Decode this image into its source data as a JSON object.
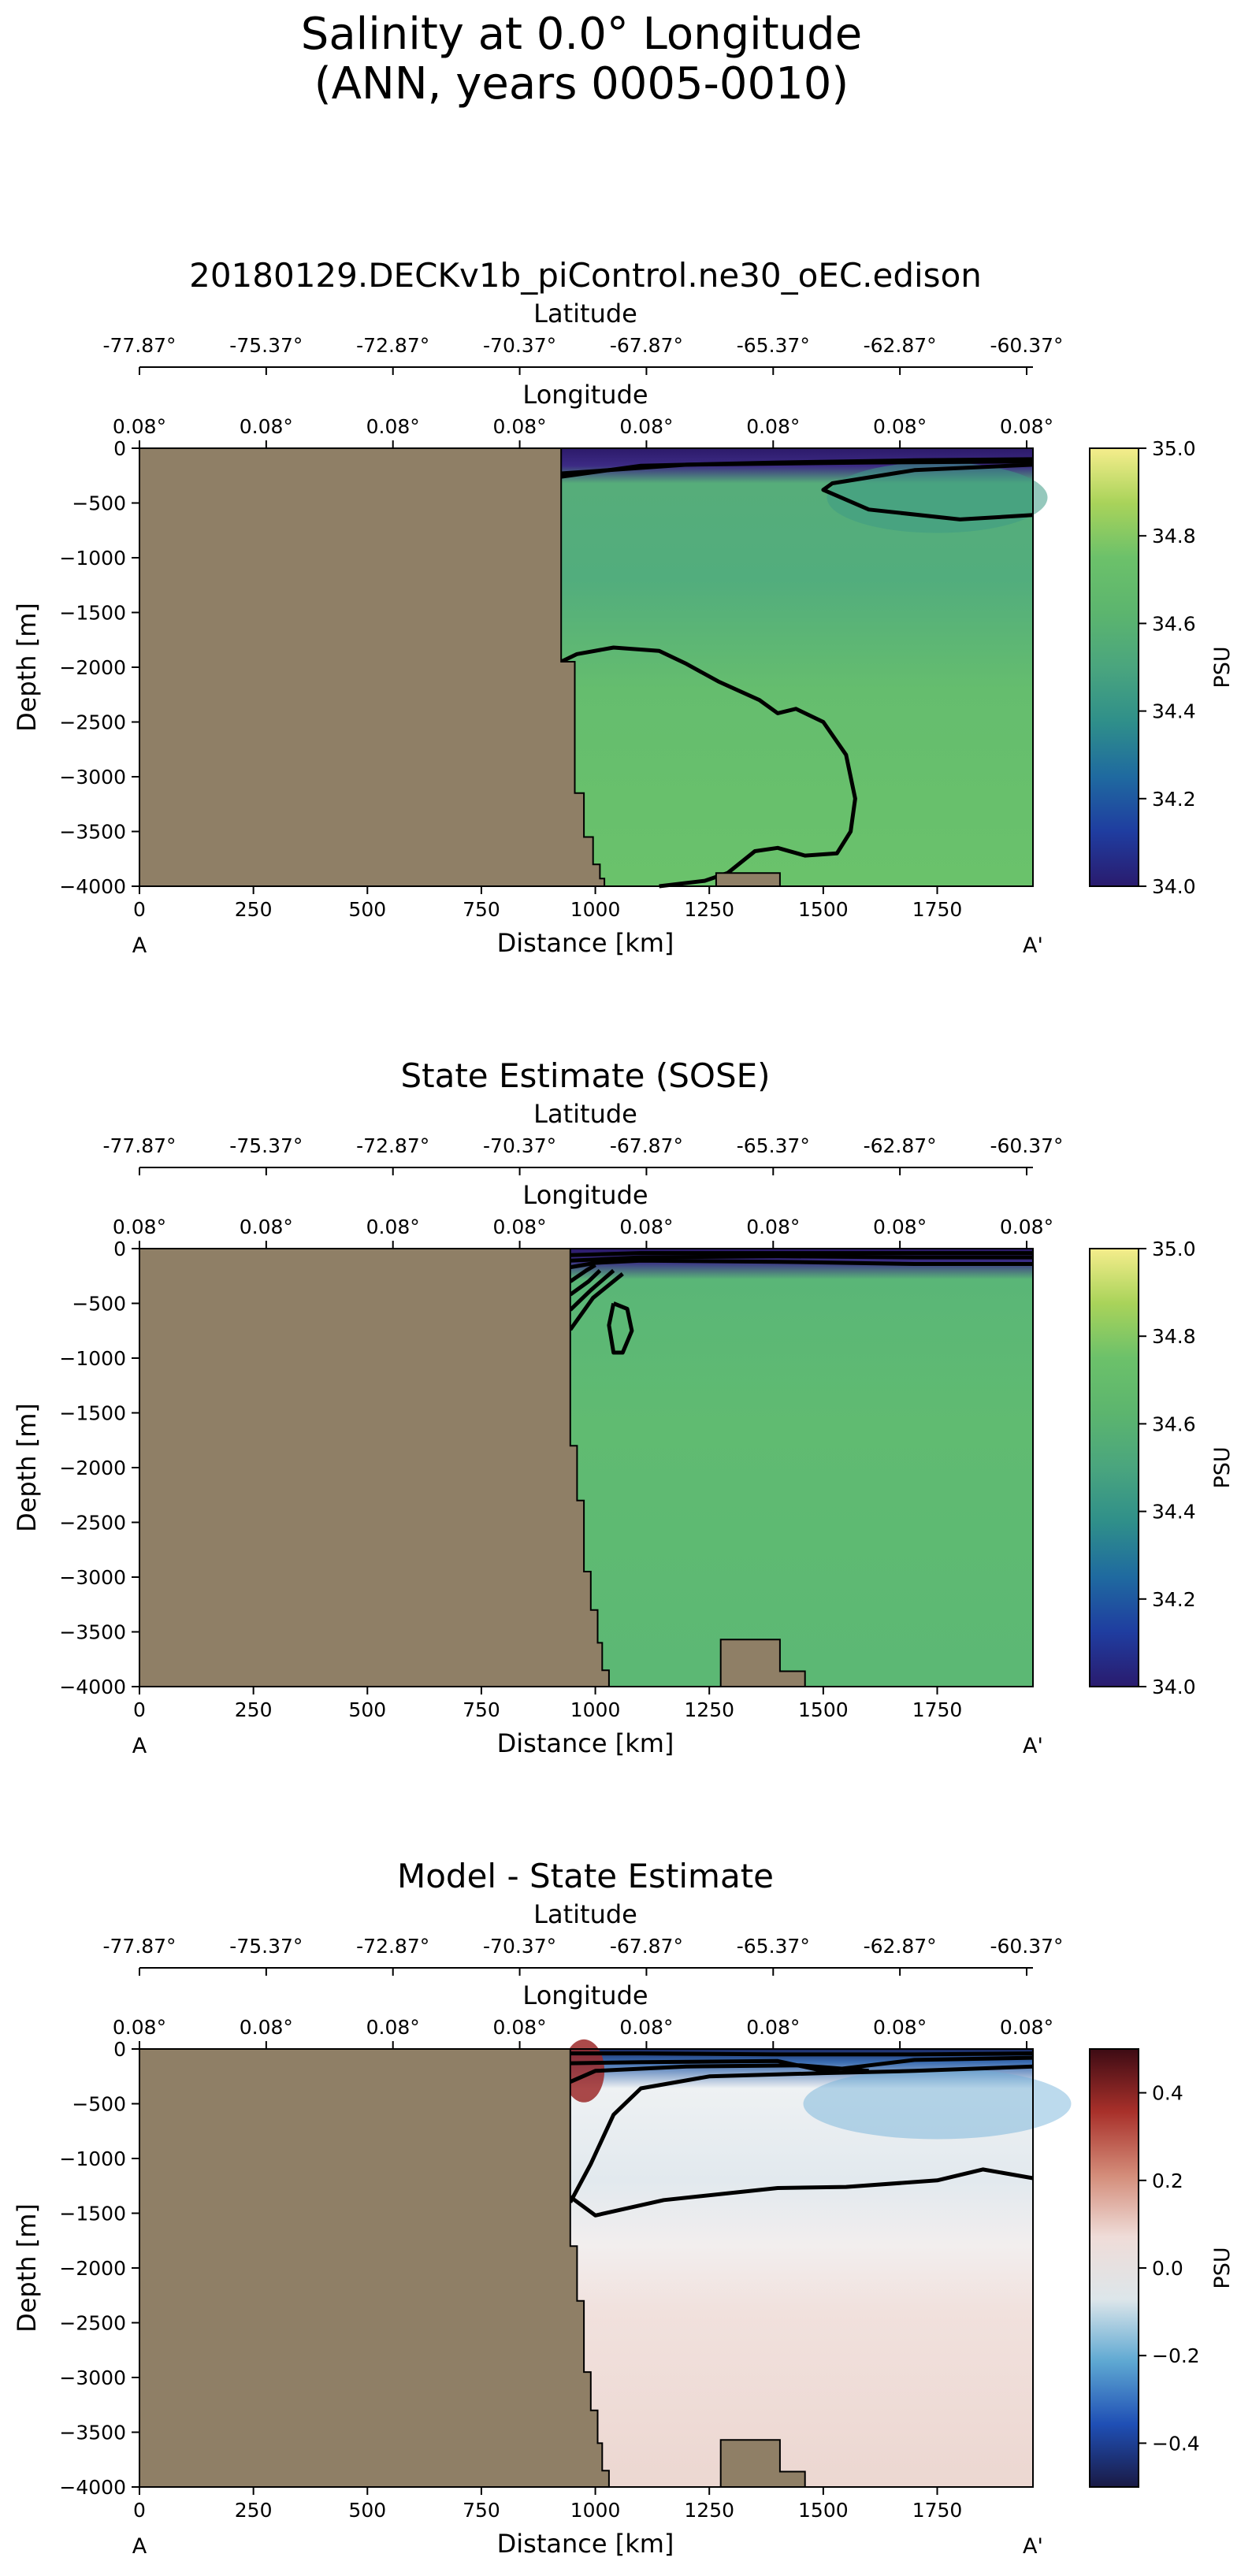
{
  "figure": {
    "title_line1": "Salinity at 0.0° Longitude",
    "title_line2": "(ANN, years 0005-0010)"
  },
  "colors": {
    "land": "#8f7f66",
    "contour": "#000000",
    "haline_stops": [
      "#2a1b6e",
      "#1f3da0",
      "#1f6aa0",
      "#2f8f8a",
      "#4aa57e",
      "#5cb56e",
      "#6cc16a",
      "#a9d35a",
      "#f5ed8c"
    ],
    "balance_stops": [
      "#1a1a45",
      "#1f4fb5",
      "#5ea8d2",
      "#dde6ea",
      "#efdcd8",
      "#d38b78",
      "#a8302a",
      "#3d0b14"
    ]
  },
  "panels": [
    {
      "title": "20180129.DECKv1b_piControl.ne30_oEC.edison",
      "lat_label": "Latitude",
      "lon_label": "Longitude",
      "lat_ticks": [
        "-77.87°",
        "-75.37°",
        "-72.87°",
        "-70.37°",
        "-67.87°",
        "-65.37°",
        "-62.87°",
        "-60.37°"
      ],
      "lon_ticks": [
        "0.08°",
        "0.08°",
        "0.08°",
        "0.08°",
        "0.08°",
        "0.08°",
        "0.08°",
        "0.08°"
      ],
      "ylabel": "Depth [m]",
      "xlabel": "Distance [km]",
      "y_ticks": [
        "0",
        "−500",
        "−1000",
        "−1500",
        "−2000",
        "−2500",
        "−3000",
        "−3500",
        "−4000"
      ],
      "x_ticks": [
        "0",
        "250",
        "500",
        "750",
        "1000",
        "1250",
        "1500",
        "1750"
      ],
      "endpoint_left": "A",
      "endpoint_right": "A'",
      "colorbar_label": "PSU",
      "colorbar_ticks": [
        "35.0",
        "34.8",
        "34.6",
        "34.4",
        "34.2",
        "34.0"
      ]
    },
    {
      "title": "State Estimate (SOSE)",
      "lat_label": "Latitude",
      "lon_label": "Longitude",
      "lat_ticks": [
        "-77.87°",
        "-75.37°",
        "-72.87°",
        "-70.37°",
        "-67.87°",
        "-65.37°",
        "-62.87°",
        "-60.37°"
      ],
      "lon_ticks": [
        "0.08°",
        "0.08°",
        "0.08°",
        "0.08°",
        "0.08°",
        "0.08°",
        "0.08°",
        "0.08°"
      ],
      "ylabel": "Depth [m]",
      "xlabel": "Distance [km]",
      "y_ticks": [
        "0",
        "−500",
        "−1000",
        "−1500",
        "−2000",
        "−2500",
        "−3000",
        "−3500",
        "−4000"
      ],
      "x_ticks": [
        "0",
        "250",
        "500",
        "750",
        "1000",
        "1250",
        "1500",
        "1750"
      ],
      "endpoint_left": "A",
      "endpoint_right": "A'",
      "colorbar_label": "PSU",
      "colorbar_ticks": [
        "35.0",
        "34.8",
        "34.6",
        "34.4",
        "34.2",
        "34.0"
      ]
    },
    {
      "title": "Model - State Estimate",
      "lat_label": "Latitude",
      "lon_label": "Longitude",
      "lat_ticks": [
        "-77.87°",
        "-75.37°",
        "-72.87°",
        "-70.37°",
        "-67.87°",
        "-65.37°",
        "-62.87°",
        "-60.37°"
      ],
      "lon_ticks": [
        "0.08°",
        "0.08°",
        "0.08°",
        "0.08°",
        "0.08°",
        "0.08°",
        "0.08°",
        "0.08°"
      ],
      "ylabel": "Depth [m]",
      "xlabel": "Distance [km]",
      "y_ticks": [
        "0",
        "−500",
        "−1000",
        "−1500",
        "−2000",
        "−2500",
        "−3000",
        "−3500",
        "−4000"
      ],
      "x_ticks": [
        "0",
        "250",
        "500",
        "750",
        "1000",
        "1250",
        "1500",
        "1750"
      ],
      "endpoint_left": "A",
      "endpoint_right": "A'",
      "colorbar_label": "PSU",
      "colorbar_ticks": [
        "0.4",
        "0.2",
        "0.0",
        "−0.2",
        "−0.4"
      ]
    }
  ],
  "chart_data": [
    {
      "type": "heatmap",
      "title": "20180129.DECKv1b_piControl.ne30_oEC.edison",
      "xlabel": "Distance [km]",
      "ylabel": "Depth [m]",
      "xlim": [
        0,
        1960
      ],
      "ylim": [
        -4000,
        0
      ],
      "colorbar": {
        "label": "PSU",
        "range": [
          34.0,
          35.0
        ],
        "cmap": "haline"
      },
      "interior_salinity": 34.65,
      "land_profile": {
        "distance_km": [
          925,
          925,
          955,
          955,
          975,
          975,
          995,
          995,
          1010,
          1010,
          1020,
          1020
        ],
        "depth_m": [
          0,
          -1950,
          -1950,
          -3150,
          -3150,
          -3550,
          -3550,
          -3800,
          -3800,
          -3930,
          -3930,
          -4000
        ]
      },
      "seamount": {
        "distance_km": [
          1265,
          1265,
          1405,
          1405
        ],
        "depth_m": [
          -4000,
          -3880,
          -3880,
          -4000
        ]
      },
      "contours": [
        {
          "distance_km": [
            925,
            1100,
            1400,
            1700,
            1960
          ],
          "depth_m": [
            -260,
            -160,
            -130,
            -110,
            -100
          ]
        },
        {
          "distance_km": [
            925,
            1200,
            1600,
            1960
          ],
          "depth_m": [
            -230,
            -150,
            -130,
            -120
          ]
        },
        {
          "distance_km": [
            1960,
            1800,
            1600,
            1500,
            1520,
            1700,
            1960
          ],
          "depth_m": [
            -610,
            -650,
            -560,
            -380,
            -320,
            -200,
            -150
          ]
        },
        {
          "distance_km": [
            925,
            960,
            1040,
            1140,
            1200,
            1270,
            1360,
            1400,
            1440,
            1500,
            1550,
            1570,
            1560,
            1530,
            1460,
            1400,
            1350,
            1290,
            1240,
            1140
          ],
          "depth_m": [
            -1950,
            -1880,
            -1820,
            -1850,
            -1970,
            -2130,
            -2300,
            -2420,
            -2380,
            -2500,
            -2800,
            -3200,
            -3500,
            -3700,
            -3720,
            -3650,
            -3680,
            -3880,
            -3950,
            -4000
          ]
        }
      ]
    },
    {
      "type": "heatmap",
      "title": "State Estimate (SOSE)",
      "xlabel": "Distance [km]",
      "ylabel": "Depth [m]",
      "xlim": [
        0,
        1960
      ],
      "ylim": [
        -4000,
        0
      ],
      "colorbar": {
        "label": "PSU",
        "range": [
          34.0,
          35.0
        ],
        "cmap": "haline"
      },
      "interior_salinity": 34.66,
      "land_profile": {
        "distance_km": [
          945,
          945,
          960,
          960,
          975,
          975,
          990,
          990,
          1005,
          1005,
          1015,
          1015,
          1030,
          1030
        ],
        "depth_m": [
          0,
          -1800,
          -1800,
          -2300,
          -2300,
          -2950,
          -2950,
          -3300,
          -3300,
          -3600,
          -3600,
          -3850,
          -3850,
          -4000
        ]
      },
      "seamount": {
        "distance_km": [
          1275,
          1275,
          1405,
          1405,
          1460,
          1460
        ],
        "depth_m": [
          -4000,
          -3570,
          -3570,
          -3860,
          -3860,
          -4000
        ]
      },
      "contours": [
        {
          "distance_km": [
            945,
            1100,
            1400,
            1700,
            1960
          ],
          "depth_m": [
            -60,
            -40,
            -40,
            -40,
            -40
          ]
        },
        {
          "distance_km": [
            945,
            1100,
            1400,
            1700,
            1960
          ],
          "depth_m": [
            -110,
            -80,
            -70,
            -80,
            -80
          ]
        },
        {
          "distance_km": [
            945,
            1000,
            1100,
            1400,
            1700,
            1960
          ],
          "depth_m": [
            -170,
            -130,
            -110,
            -120,
            -140,
            -140
          ]
        },
        {
          "distance_km": [
            945,
            980,
            1000
          ],
          "depth_m": [
            -300,
            -200,
            -150
          ]
        },
        {
          "distance_km": [
            945,
            985,
            1010
          ],
          "depth_m": [
            -420,
            -300,
            -200
          ]
        },
        {
          "distance_km": [
            945,
            990,
            1040
          ],
          "depth_m": [
            -560,
            -380,
            -200
          ]
        },
        {
          "distance_km": [
            945,
            995,
            1060
          ],
          "depth_m": [
            -740,
            -450,
            -230
          ]
        },
        {
          "distance_km": [
            1040,
            1070,
            1080,
            1060,
            1040,
            1030,
            1040
          ],
          "depth_m": [
            -500,
            -550,
            -750,
            -950,
            -950,
            -700,
            -500
          ]
        }
      ]
    },
    {
      "type": "heatmap",
      "title": "Model - State Estimate",
      "xlabel": "Distance [km]",
      "ylabel": "Depth [m]",
      "xlim": [
        0,
        1960
      ],
      "ylim": [
        -4000,
        0
      ],
      "colorbar": {
        "label": "PSU",
        "range": [
          -0.5,
          0.5
        ],
        "cmap": "balance"
      },
      "land_profile": {
        "distance_km": [
          945,
          945,
          960,
          960,
          975,
          975,
          990,
          990,
          1005,
          1005,
          1015,
          1015,
          1030,
          1030
        ],
        "depth_m": [
          0,
          -1800,
          -1800,
          -2300,
          -2300,
          -2950,
          -2950,
          -3300,
          -3300,
          -3600,
          -3600,
          -3850,
          -3850,
          -4000
        ]
      },
      "seamount": {
        "distance_km": [
          1275,
          1275,
          1405,
          1405,
          1460,
          1460
        ],
        "depth_m": [
          -4000,
          -3570,
          -3570,
          -3860,
          -3860,
          -4000
        ]
      },
      "contours": [
        {
          "distance_km": [
            945,
            1100,
            1400,
            1700,
            1960
          ],
          "depth_m": [
            -40,
            -40,
            -50,
            -50,
            -40
          ]
        },
        {
          "distance_km": [
            945,
            1100,
            1400,
            1500,
            1700,
            1960
          ],
          "depth_m": [
            -130,
            -120,
            -110,
            -200,
            -100,
            -80
          ]
        },
        {
          "distance_km": [
            945,
            1000,
            1200,
            1450,
            1600
          ],
          "depth_m": [
            -300,
            -200,
            -160,
            -150,
            -200
          ]
        },
        {
          "distance_km": [
            945,
            990,
            1040,
            1100,
            1250,
            1500,
            1700,
            1960
          ],
          "depth_m": [
            -1400,
            -1050,
            -600,
            -360,
            -250,
            -220,
            -200,
            -160
          ]
        },
        {
          "distance_km": [
            945,
            1000,
            1150,
            1400,
            1550,
            1750,
            1850,
            1960
          ],
          "depth_m": [
            -1350,
            -1520,
            -1380,
            -1270,
            -1260,
            -1200,
            -1100,
            -1180
          ]
        }
      ]
    }
  ]
}
